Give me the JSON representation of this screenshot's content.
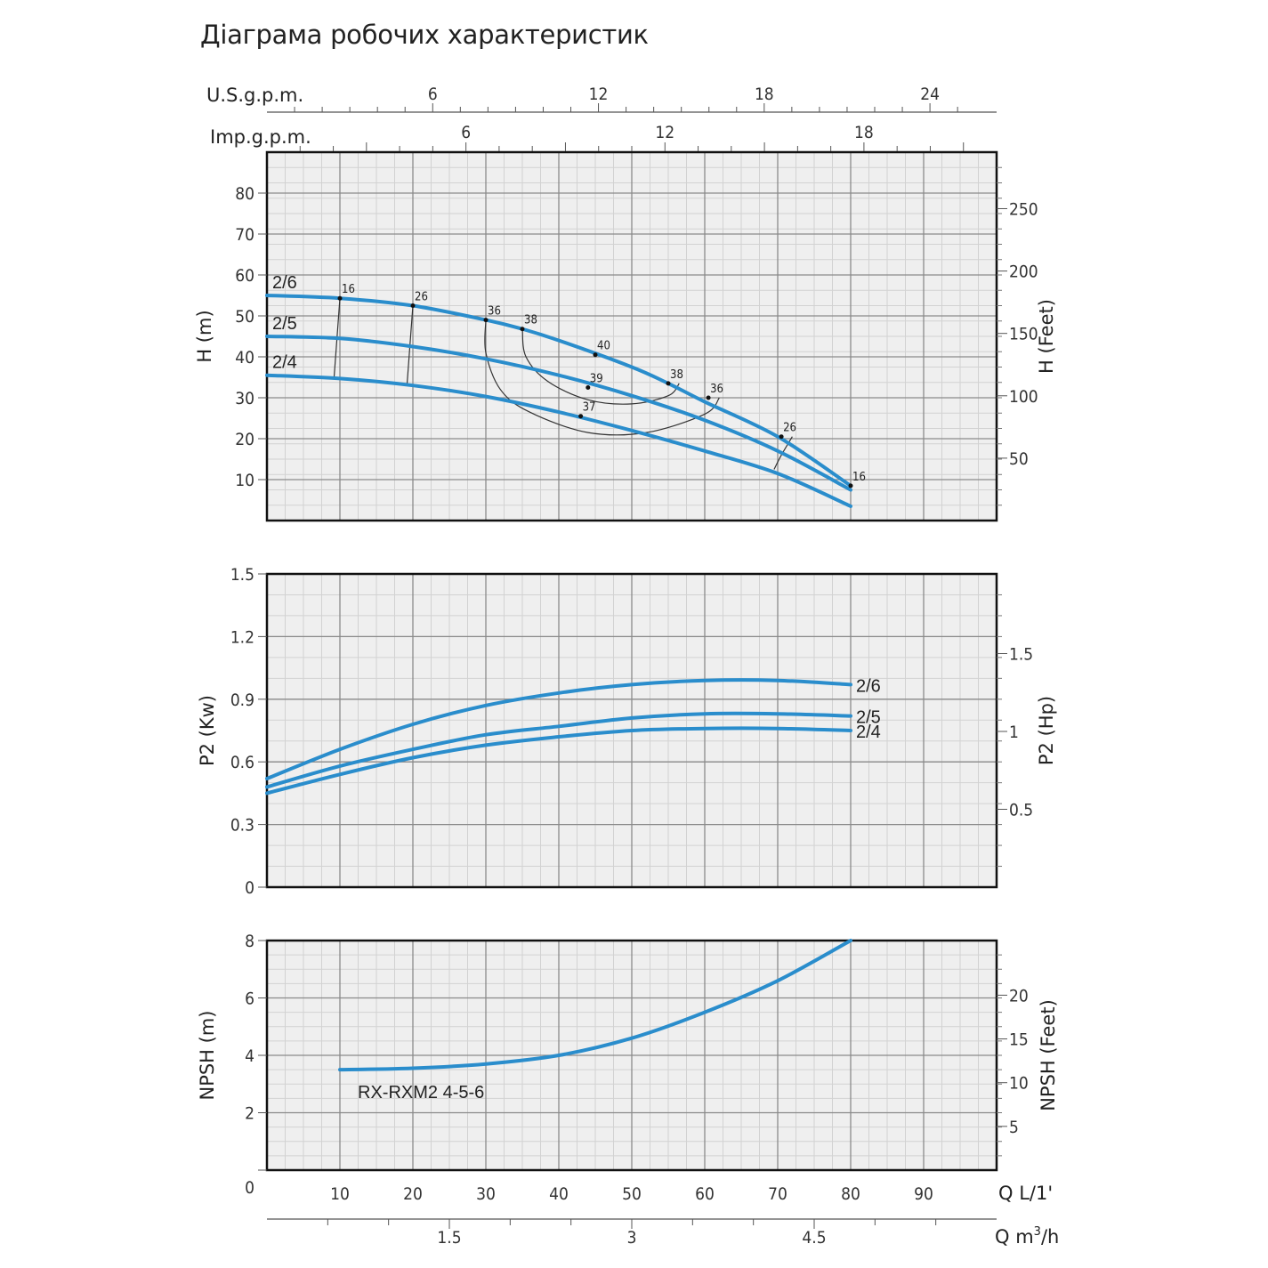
{
  "title": "Діаграма робочих характеристик",
  "colors": {
    "curve": "#2a8dcc",
    "grid": "#8a8a8a",
    "minor_grid": "#d2d2d2",
    "plot_bg": "#efefef",
    "frame": "#111111",
    "eff": "#333333"
  },
  "top_axes": {
    "usgpm": {
      "label": "U.S.g.p.m.",
      "ticks": [
        {
          "v": 6,
          "t": "6"
        },
        {
          "v": 12,
          "t": "12"
        },
        {
          "v": 18,
          "t": "18"
        },
        {
          "v": 24,
          "t": "24"
        }
      ]
    },
    "impgpm": {
      "label": "Imp.g.p.m.",
      "ticks": [
        {
          "v": 6,
          "t": "6"
        },
        {
          "v": 12,
          "t": "12"
        },
        {
          "v": 18,
          "t": "18"
        }
      ]
    }
  },
  "bottom_axes": {
    "lmin": {
      "label": "Q L/1'",
      "ticks": [
        {
          "v": 10,
          "t": "10"
        },
        {
          "v": 20,
          "t": "20"
        },
        {
          "v": 30,
          "t": "30"
        },
        {
          "v": 40,
          "t": "40"
        },
        {
          "v": 50,
          "t": "50"
        },
        {
          "v": 60,
          "t": "60"
        },
        {
          "v": 70,
          "t": "70"
        },
        {
          "v": 80,
          "t": "80"
        },
        {
          "v": 90,
          "t": "90"
        }
      ]
    },
    "m3h": {
      "label_prefix": "Q m",
      "label_sup": "3",
      "label_suffix": "/h",
      "ticks": [
        {
          "v": 1.5,
          "t": "1.5"
        },
        {
          "v": 3,
          "t": "3"
        },
        {
          "v": 4.5,
          "t": "4.5"
        }
      ]
    }
  },
  "chart_data": [
    {
      "id": "head",
      "type": "line",
      "ylabel": "H (m)",
      "ylabel_right": "H (Feet)",
      "xlim": [
        0,
        100
      ],
      "ylim": [
        0,
        90
      ],
      "yticks": [
        {
          "v": 10,
          "t": "10"
        },
        {
          "v": 20,
          "t": "20"
        },
        {
          "v": 30,
          "t": "30"
        },
        {
          "v": 40,
          "t": "40"
        },
        {
          "v": 50,
          "t": "50"
        },
        {
          "v": 60,
          "t": "60"
        },
        {
          "v": 70,
          "t": "70"
        },
        {
          "v": 80,
          "t": "80"
        }
      ],
      "yticks_right": [
        {
          "v": 50,
          "t": "50"
        },
        {
          "v": 100,
          "t": "100"
        },
        {
          "v": 150,
          "t": "150"
        },
        {
          "v": 200,
          "t": "200"
        },
        {
          "v": 250,
          "t": "250"
        }
      ],
      "right_unit_factor": 3.28084,
      "series": [
        {
          "name": "2/6",
          "x": [
            0,
            10,
            20,
            30,
            35,
            40,
            50,
            55,
            60,
            70,
            80
          ],
          "y": [
            55,
            54.3,
            52.5,
            49,
            46.8,
            44,
            37.5,
            33.5,
            29,
            20.5,
            8.5
          ]
        },
        {
          "name": "2/5",
          "x": [
            0,
            10,
            20,
            30,
            40,
            50,
            60,
            70,
            80
          ],
          "y": [
            45,
            44.5,
            42.5,
            39.5,
            35.5,
            30.5,
            24.5,
            17,
            7.5
          ]
        },
        {
          "name": "2/4",
          "x": [
            0,
            10,
            20,
            30,
            40,
            50,
            60,
            70,
            80
          ],
          "y": [
            35.5,
            34.7,
            33,
            30.3,
            26.5,
            22,
            17,
            11.5,
            3.5
          ]
        }
      ],
      "efficiency": [
        {
          "label": "16",
          "points": [
            [
              10,
              54.3
            ],
            [
              9.2,
              34.8
            ]
          ],
          "label_at": [
            10,
            54.3
          ]
        },
        {
          "label": "26",
          "points": [
            [
              20,
              52.5
            ],
            [
              19.2,
              33.1
            ]
          ],
          "label_at": [
            20,
            52.5
          ]
        },
        {
          "label": "36",
          "points": [
            [
              30,
              49
            ],
            [
              30,
              41
            ],
            [
              32,
              32
            ],
            [
              36,
              26.5
            ],
            [
              44,
              21.5
            ],
            [
              52,
              21.5
            ],
            [
              60,
              26
            ],
            [
              62,
              30
            ]
          ],
          "label_at": [
            30,
            49
          ]
        },
        {
          "label": "38",
          "points": [
            [
              35,
              46.8
            ],
            [
              35.5,
              40
            ],
            [
              38.5,
              34
            ],
            [
              44,
              29.5
            ],
            [
              50,
              28.5
            ],
            [
              55,
              30.5
            ],
            [
              56.5,
              33.5
            ]
          ],
          "label_at": [
            35,
            46.8
          ]
        },
        {
          "label": "26",
          "points": [
            [
              69.5,
              12.5
            ],
            [
              70.5,
              16
            ],
            [
              72,
              20.5
            ]
          ],
          "label_at": [
            72,
            20.5
          ]
        },
        {
          "label": "16",
          "points": [
            [
              80,
              8.5
            ]
          ],
          "label_at": [
            80,
            8.5
          ]
        }
      ],
      "efficiency_marks": [
        {
          "label": "16",
          "x": 10,
          "y": 54.3
        },
        {
          "label": "26",
          "x": 20,
          "y": 52.5
        },
        {
          "label": "36",
          "x": 30,
          "y": 49
        },
        {
          "label": "38",
          "x": 35,
          "y": 46.8
        },
        {
          "label": "40",
          "x": 45,
          "y": 40.5
        },
        {
          "label": "39",
          "x": 44,
          "y": 32.5
        },
        {
          "label": "37",
          "x": 43,
          "y": 25.5
        },
        {
          "label": "38",
          "x": 55,
          "y": 33.5
        },
        {
          "label": "36",
          "x": 60.5,
          "y": 30
        },
        {
          "label": "26",
          "x": 70.5,
          "y": 20.5
        },
        {
          "label": "16",
          "x": 80,
          "y": 8.5
        }
      ]
    },
    {
      "id": "power",
      "type": "line",
      "ylabel": "P2 (Kw)",
      "ylabel_right": "P2 (Hp)",
      "xlim": [
        0,
        100
      ],
      "ylim": [
        0,
        1.5
      ],
      "yticks": [
        {
          "v": 0,
          "t": "0"
        },
        {
          "v": 0.3,
          "t": "0.3"
        },
        {
          "v": 0.6,
          "t": "0.6"
        },
        {
          "v": 0.9,
          "t": "0.9"
        },
        {
          "v": 1.2,
          "t": "1.2"
        },
        {
          "v": 1.5,
          "t": "1.5"
        }
      ],
      "yticks_right": [
        {
          "v": 0.5,
          "t": "0.5"
        },
        {
          "v": 1,
          "t": "1"
        },
        {
          "v": 1.5,
          "t": "1.5"
        }
      ],
      "right_unit_factor": 1.341,
      "series": [
        {
          "name": "2/6",
          "x": [
            0,
            10,
            20,
            30,
            40,
            50,
            60,
            70,
            80
          ],
          "y": [
            0.52,
            0.66,
            0.78,
            0.87,
            0.93,
            0.97,
            0.99,
            0.99,
            0.97
          ]
        },
        {
          "name": "2/5",
          "x": [
            0,
            10,
            20,
            30,
            40,
            50,
            60,
            70,
            80
          ],
          "y": [
            0.48,
            0.58,
            0.66,
            0.73,
            0.77,
            0.81,
            0.83,
            0.83,
            0.82
          ]
        },
        {
          "name": "2/4",
          "x": [
            0,
            10,
            20,
            30,
            40,
            50,
            60,
            70,
            80
          ],
          "y": [
            0.45,
            0.54,
            0.62,
            0.68,
            0.72,
            0.75,
            0.76,
            0.76,
            0.75
          ]
        }
      ]
    },
    {
      "id": "npsh",
      "type": "line",
      "ylabel": "NPSH (m)",
      "ylabel_right": "NPSH (Feet)",
      "annotation": "RX-RXM2 4-5-6",
      "xlim": [
        0,
        100
      ],
      "ylim": [
        0,
        8
      ],
      "yticks": [
        {
          "v": 0,
          "t": "0"
        },
        {
          "v": 2,
          "t": "2"
        },
        {
          "v": 4,
          "t": "4"
        },
        {
          "v": 6,
          "t": "6"
        },
        {
          "v": 8,
          "t": "8"
        }
      ],
      "yticks_right": [
        {
          "v": 5,
          "t": "5"
        },
        {
          "v": 10,
          "t": "10"
        },
        {
          "v": 15,
          "t": "15"
        },
        {
          "v": 20,
          "t": "20"
        }
      ],
      "right_unit_factor": 3.28084,
      "series": [
        {
          "name": "",
          "x": [
            10,
            20,
            30,
            40,
            50,
            60,
            70,
            80
          ],
          "y": [
            3.5,
            3.55,
            3.7,
            4.0,
            4.6,
            5.5,
            6.6,
            8.0
          ]
        }
      ]
    }
  ]
}
